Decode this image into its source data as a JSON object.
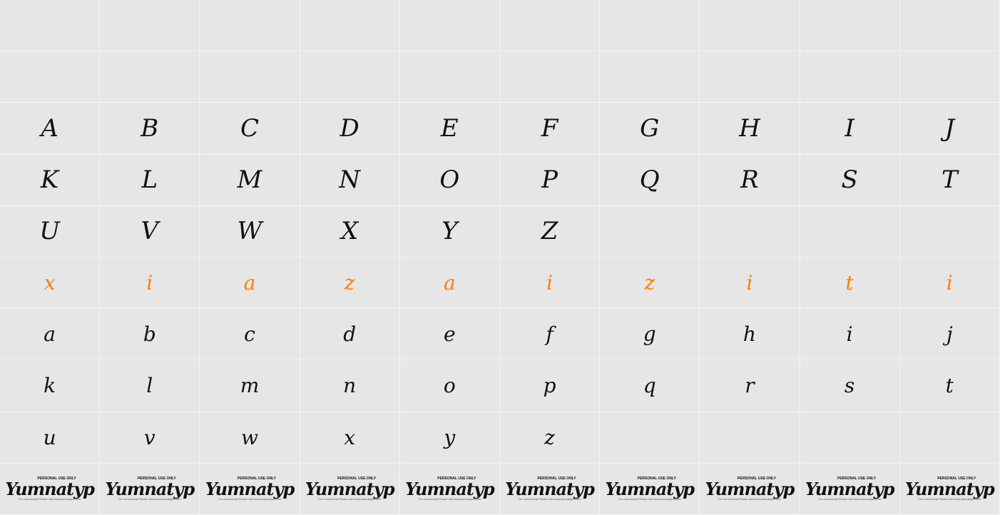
{
  "rows": [
    [
      "",
      "",
      "",
      "",
      "",
      "",
      "",
      "",
      "",
      ""
    ],
    [
      "",
      "",
      "",
      "",
      "",
      "",
      "",
      "",
      "",
      ""
    ],
    [
      "A",
      "B",
      "C",
      "D",
      "E",
      "F",
      "G",
      "H",
      "I",
      "J"
    ],
    [
      "K",
      "L",
      "M",
      "N",
      "O",
      "P",
      "Q",
      "R",
      "S",
      "T"
    ],
    [
      "U",
      "V",
      "W",
      "X",
      "Y",
      "Z",
      "",
      "",
      "",
      ""
    ],
    [
      "x",
      "i",
      "a",
      "z",
      "a",
      "i",
      "z",
      "i",
      "t",
      "i"
    ],
    [
      "a",
      "b",
      "c",
      "d",
      "e",
      "f",
      "g",
      "h",
      "i",
      "j"
    ],
    [
      "k",
      "l",
      "m",
      "n",
      "o",
      "p",
      "q",
      "r",
      "s",
      "t"
    ],
    [
      "u",
      "v",
      "w",
      "x",
      "y",
      "z",
      "",
      "",
      "",
      ""
    ]
  ],
  "highlight_row": 5,
  "highlight_color": "#ff7f00",
  "logo": {
    "badge": "PERSONAL USE ONLY",
    "name": "Yumnatyp",
    "note": "For commercial Please visit www.yumnatype.com"
  }
}
